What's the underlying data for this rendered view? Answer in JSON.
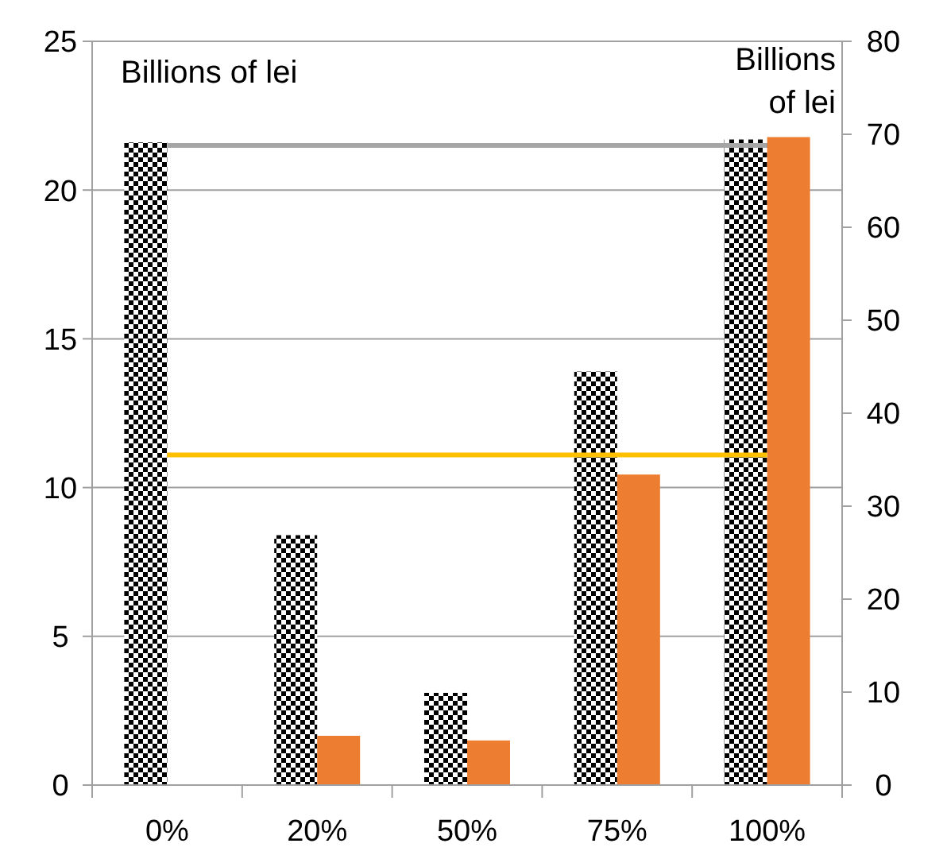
{
  "chart_data": {
    "type": "bar",
    "ylabel": "Billions of lei",
    "y2label": "Billions of lei",
    "categories": [
      "0%",
      "20%",
      "50%",
      "75%",
      "100%"
    ],
    "series": [
      {
        "color": "#000000",
        "values": [
          21.6,
          8.4,
          3.1,
          13.9,
          21.7
        ]
      },
      {
        "axis": "y2",
        "color": "#ed7d31",
        "values": [
          null,
          5.3,
          4.8,
          33.4,
          69.7
        ]
      },
      {
        "type": "line",
        "color": "#a5a5a5",
        "values": [
          21.5,
          21.5,
          21.5,
          21.5,
          21.5
        ]
      },
      {
        "type": "line",
        "color": "#ffc000",
        "values": [
          11.1,
          11.1,
          11.1,
          11.1,
          11.1
        ]
      }
    ],
    "ylim": [
      0,
      25
    ],
    "yticks": [
      0,
      5,
      10,
      15,
      20,
      25
    ],
    "y2lim": [
      0,
      80
    ],
    "y2ticks": [
      0,
      10,
      20,
      30,
      40,
      50,
      60,
      70,
      80
    ],
    "grid": "y",
    "marker": "none",
    "line_style": "solid"
  }
}
